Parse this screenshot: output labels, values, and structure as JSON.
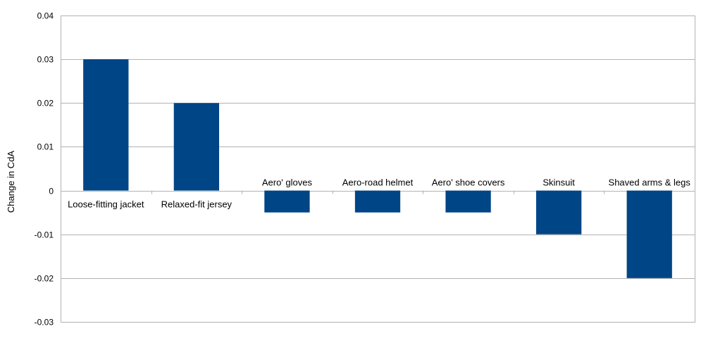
{
  "chart_data": {
    "type": "bar",
    "title": "",
    "xlabel": "",
    "ylabel": "Change in CdA",
    "ylim": [
      -0.03,
      0.04
    ],
    "yticks": [
      0.04,
      0.03,
      0.02,
      0.01,
      0,
      -0.01,
      -0.02,
      -0.03
    ],
    "ytick_labels": [
      "0.04",
      "0.03",
      "0.02",
      "0.01",
      "0",
      "-0.01",
      "-0.02",
      "-0.03"
    ],
    "grid": true,
    "legend": "none",
    "bar_color": "#004586",
    "categories": [
      "Loose-fitting jacket",
      "Relaxed-fit jersey",
      "Aero' gloves",
      "Aero-road helmet",
      "Aero' shoe covers",
      "Skinsuit",
      "Shaved arms & legs"
    ],
    "values": [
      0.03,
      0.02,
      -0.005,
      -0.005,
      -0.005,
      -0.01,
      -0.02
    ]
  }
}
